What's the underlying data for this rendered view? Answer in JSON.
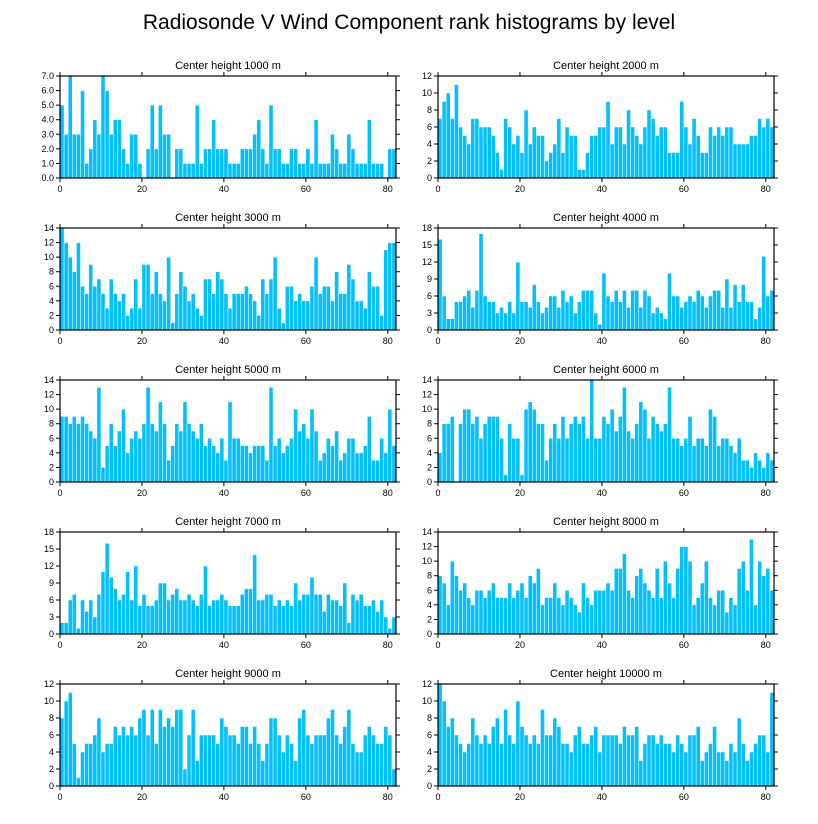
{
  "title": "Radiosonde V Wind Component rank histograms by level",
  "chart_data": [
    {
      "type": "bar",
      "title": "Center height 1000 m",
      "xlim": [
        0,
        82
      ],
      "ylim": [
        0,
        7
      ],
      "xticks": [
        0,
        20,
        40,
        60,
        80
      ],
      "yticks": [
        "0.0",
        "1.0",
        "2.0",
        "3.0",
        "4.0",
        "5.0",
        "6.0",
        "7.0"
      ],
      "values": [
        5,
        3,
        7,
        3,
        3,
        6,
        1,
        2,
        4,
        3,
        7,
        6,
        3,
        4,
        4,
        2,
        1,
        3,
        3,
        1,
        0,
        2,
        5,
        2,
        5,
        3,
        3,
        0,
        2,
        2,
        1,
        1,
        1,
        5,
        1,
        2,
        2,
        4,
        2,
        2,
        2,
        1,
        1,
        1,
        2,
        2,
        2,
        3,
        4,
        2,
        1,
        5,
        2,
        2,
        1,
        1,
        2,
        2,
        1,
        1,
        2,
        1,
        4,
        1,
        1,
        1,
        3,
        2,
        1,
        1,
        3,
        2,
        1,
        1,
        1,
        4,
        1,
        1,
        1,
        0,
        2,
        2
      ]
    },
    {
      "type": "bar",
      "title": "Center height 2000 m",
      "xlim": [
        0,
        82
      ],
      "ylim": [
        0,
        12
      ],
      "xticks": [
        0,
        20,
        40,
        60,
        80
      ],
      "yticks": [
        "0",
        "2",
        "4",
        "6",
        "8",
        "10",
        "12"
      ],
      "values": [
        7,
        9,
        10,
        7,
        11,
        6,
        5,
        4,
        7,
        7,
        6,
        6,
        6,
        5,
        3,
        1,
        7,
        6,
        4,
        5,
        3,
        8,
        4,
        6,
        5,
        5,
        2,
        3,
        4,
        7,
        3,
        6,
        5,
        5,
        1,
        1,
        3,
        5,
        5,
        6,
        6,
        9,
        4,
        6,
        6,
        4,
        8,
        6,
        5,
        4,
        6,
        8,
        7,
        5,
        6,
        6,
        3,
        3,
        3,
        9,
        6,
        4,
        7,
        5,
        3,
        3,
        6,
        5,
        6,
        5,
        6,
        6,
        4,
        4,
        4,
        4,
        5,
        5,
        7,
        6,
        7,
        6
      ]
    },
    {
      "type": "bar",
      "title": "Center height 3000 m",
      "xlim": [
        0,
        82
      ],
      "ylim": [
        0,
        14
      ],
      "xticks": [
        0,
        20,
        40,
        60,
        80
      ],
      "yticks": [
        "0",
        "2",
        "4",
        "6",
        "8",
        "10",
        "12",
        "14"
      ],
      "values": [
        14,
        12,
        10,
        8,
        12,
        6,
        5,
        9,
        6,
        7,
        5,
        3,
        7,
        5,
        4,
        5,
        2,
        3,
        7,
        3,
        9,
        9,
        5,
        8,
        5,
        4,
        10,
        1,
        5,
        8,
        6,
        4,
        5,
        3,
        2,
        7,
        7,
        5,
        8,
        7,
        5,
        3,
        5,
        5,
        5,
        6,
        5,
        4,
        2,
        7,
        5,
        7,
        10,
        3,
        1,
        6,
        6,
        4,
        5,
        4,
        4,
        6,
        10,
        5,
        6,
        6,
        4,
        8,
        5,
        5,
        9,
        7,
        4,
        4,
        3,
        8,
        6,
        6,
        2,
        11,
        12,
        12
      ]
    },
    {
      "type": "bar",
      "title": "Center height 4000 m",
      "xlim": [
        0,
        82
      ],
      "ylim": [
        0,
        18
      ],
      "xticks": [
        0,
        20,
        40,
        60,
        80
      ],
      "yticks": [
        "0",
        "3",
        "6",
        "9",
        "12",
        "15",
        "18"
      ],
      "values": [
        16,
        6,
        2,
        2,
        5,
        5,
        6,
        7,
        4,
        7,
        17,
        6,
        5,
        5,
        3,
        4,
        3,
        5,
        3,
        12,
        5,
        5,
        4,
        8,
        5,
        3,
        4,
        6,
        6,
        4,
        7,
        5,
        6,
        3,
        5,
        7,
        7,
        7,
        3,
        1,
        10,
        6,
        5,
        7,
        5,
        7,
        4,
        7,
        7,
        4,
        7,
        6,
        3,
        4,
        3,
        2,
        10,
        6,
        6,
        4,
        5,
        6,
        5,
        7,
        6,
        4,
        6,
        7,
        7,
        4,
        9,
        4,
        8,
        5,
        8,
        5,
        5,
        2,
        4,
        13,
        6,
        7
      ]
    },
    {
      "type": "bar",
      "title": "Center height 5000 m",
      "xlim": [
        0,
        82
      ],
      "ylim": [
        0,
        14
      ],
      "xticks": [
        0,
        20,
        40,
        60,
        80
      ],
      "yticks": [
        "0",
        "2",
        "4",
        "6",
        "8",
        "10",
        "12",
        "14"
      ],
      "values": [
        9,
        9,
        8,
        9,
        8,
        9,
        8,
        7,
        6,
        13,
        2,
        5,
        8,
        5,
        7,
        10,
        4,
        6,
        7,
        6,
        8,
        13,
        8,
        7,
        11,
        8,
        3,
        5,
        8,
        7,
        11,
        8,
        7,
        6,
        8,
        5,
        6,
        5,
        4,
        6,
        3,
        11,
        6,
        6,
        5,
        5,
        4,
        5,
        5,
        5,
        3,
        13,
        5,
        6,
        4,
        5,
        6,
        10,
        7,
        8,
        6,
        10,
        7,
        3,
        4,
        6,
        5,
        7,
        3,
        4,
        6,
        6,
        4,
        4,
        5,
        9,
        3,
        3,
        6,
        4,
        10,
        5
      ]
    },
    {
      "type": "bar",
      "title": "Center height 6000 m",
      "xlim": [
        0,
        82
      ],
      "ylim": [
        0,
        14
      ],
      "xticks": [
        0,
        20,
        40,
        60,
        80
      ],
      "yticks": [
        "0",
        "2",
        "4",
        "6",
        "8",
        "10",
        "12",
        "14"
      ],
      "values": [
        4,
        8,
        8,
        9,
        0,
        8,
        10,
        10,
        8,
        9,
        6,
        8,
        9,
        9,
        9,
        6,
        1,
        8,
        6,
        6,
        1,
        10,
        11,
        10,
        8,
        8,
        3,
        6,
        8,
        6,
        9,
        6,
        8,
        9,
        8,
        9,
        6,
        14,
        6,
        6,
        9,
        8,
        10,
        7,
        9,
        13,
        7,
        6,
        8,
        11,
        10,
        6,
        9,
        8,
        7,
        8,
        13,
        6,
        6,
        5,
        6,
        9,
        5,
        6,
        6,
        5,
        10,
        9,
        5,
        6,
        6,
        5,
        4,
        6,
        3,
        3,
        2,
        4,
        3,
        2,
        4,
        3
      ]
    },
    {
      "type": "bar",
      "title": "Center height 7000 m",
      "xlim": [
        0,
        82
      ],
      "ylim": [
        0,
        18
      ],
      "xticks": [
        0,
        20,
        40,
        60,
        80
      ],
      "yticks": [
        "0",
        "3",
        "6",
        "9",
        "12",
        "15",
        "18"
      ],
      "values": [
        2,
        2,
        6,
        7,
        1,
        6,
        4,
        6,
        3,
        7,
        11,
        16,
        10,
        8,
        6,
        7,
        11,
        6,
        12,
        5,
        7,
        5,
        5,
        6,
        9,
        9,
        6,
        7,
        8,
        6,
        6,
        7,
        6,
        5,
        7,
        12,
        5,
        6,
        6,
        7,
        6,
        5,
        5,
        5,
        7,
        8,
        8,
        14,
        6,
        6,
        7,
        7,
        5,
        6,
        5,
        6,
        5,
        9,
        6,
        7,
        7,
        10,
        7,
        7,
        4,
        7,
        6,
        6,
        5,
        9,
        2,
        7,
        6,
        7,
        5,
        5,
        6,
        4,
        6,
        3,
        1,
        3
      ]
    },
    {
      "type": "bar",
      "title": "Center height 8000 m",
      "xlim": [
        0,
        82
      ],
      "ylim": [
        0,
        14
      ],
      "xticks": [
        0,
        20,
        40,
        60,
        80
      ],
      "yticks": [
        "0",
        "2",
        "4",
        "6",
        "8",
        "10",
        "12",
        "14"
      ],
      "values": [
        8,
        7,
        4,
        10,
        8,
        6,
        7,
        5,
        4,
        6,
        6,
        5,
        6,
        7,
        5,
        5,
        5,
        7,
        5,
        6,
        7,
        5,
        8,
        7,
        9,
        4,
        5,
        5,
        7,
        5,
        4,
        6,
        5,
        4,
        3,
        7,
        5,
        4,
        6,
        6,
        6,
        7,
        6,
        9,
        9,
        11,
        6,
        5,
        8,
        9,
        7,
        6,
        5,
        9,
        5,
        10,
        7,
        5,
        9,
        12,
        12,
        10,
        4,
        5,
        7,
        10,
        5,
        4,
        6,
        6,
        3,
        5,
        4,
        9,
        10,
        6,
        13,
        4,
        10,
        8,
        9,
        6
      ]
    },
    {
      "type": "bar",
      "title": "Center height 9000 m",
      "xlim": [
        0,
        82
      ],
      "ylim": [
        0,
        12
      ],
      "xticks": [
        0,
        20,
        40,
        60,
        80
      ],
      "yticks": [
        "0",
        "2",
        "4",
        "6",
        "8",
        "10",
        "12"
      ],
      "values": [
        8,
        10,
        11,
        5,
        1,
        4,
        5,
        5,
        6,
        8,
        4,
        5,
        5,
        7,
        6,
        7,
        6,
        7,
        6,
        8,
        9,
        6,
        9,
        5,
        9,
        7,
        8,
        7,
        9,
        9,
        2,
        6,
        9,
        3,
        6,
        6,
        6,
        6,
        5,
        8,
        7,
        6,
        6,
        5,
        7,
        7,
        5,
        7,
        5,
        3,
        5,
        8,
        8,
        6,
        4,
        6,
        5,
        3,
        8,
        9,
        6,
        5,
        6,
        6,
        6,
        8,
        9,
        6,
        5,
        7,
        9,
        5,
        4,
        4,
        6,
        7,
        6,
        5,
        5,
        7,
        6,
        2
      ]
    },
    {
      "type": "bar",
      "title": "Center height 10000 m",
      "xlim": [
        0,
        82
      ],
      "ylim": [
        0,
        12
      ],
      "xticks": [
        0,
        20,
        40,
        60,
        80
      ],
      "yticks": [
        "0",
        "2",
        "4",
        "6",
        "8",
        "10",
        "12"
      ],
      "values": [
        12,
        10,
        7,
        8,
        6,
        5,
        4,
        5,
        8,
        6,
        5,
        6,
        5,
        7,
        8,
        5,
        9,
        6,
        5,
        10,
        7,
        6,
        5,
        6,
        5,
        9,
        6,
        6,
        8,
        7,
        5,
        5,
        4,
        6,
        7,
        5,
        5,
        6,
        7,
        4,
        6,
        6,
        6,
        6,
        5,
        7,
        6,
        6,
        7,
        3,
        5,
        6,
        6,
        5,
        6,
        5,
        5,
        4,
        6,
        5,
        4,
        6,
        6,
        7,
        3,
        4,
        5,
        7,
        4,
        4,
        3,
        5,
        4,
        8,
        5,
        3,
        4,
        5,
        6,
        6,
        4,
        11
      ]
    }
  ]
}
